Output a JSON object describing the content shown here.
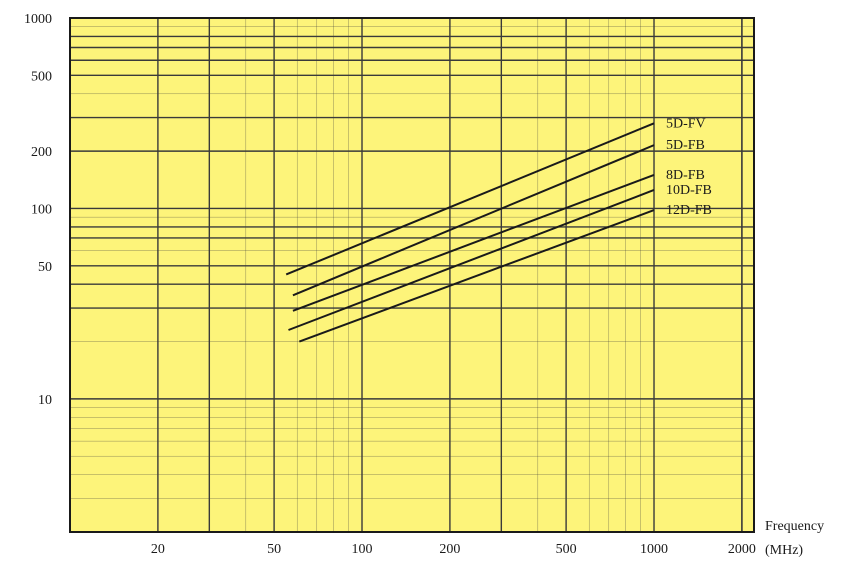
{
  "chart_data": {
    "type": "line",
    "xscale": "log",
    "yscale": "log",
    "xlim": [
      10,
      2200
    ],
    "ylim": [
      2,
      1000
    ],
    "x_tick_labels": [
      20,
      50,
      100,
      200,
      500,
      1000,
      2000
    ],
    "y_tick_labels": [
      10,
      50,
      100,
      200,
      500,
      1000
    ],
    "xlabel": "Frequency",
    "xlabel_unit": "(MHz)",
    "ylabel": "",
    "grid": true,
    "legend": "labels at line ends (right)",
    "colors": {
      "plot_background": "#fdf47a",
      "grid_line": "#3a3a3a",
      "series_line": "#1a1a1a",
      "frame": "#1a1a1a"
    },
    "series": [
      {
        "name": "5D-FV",
        "x": [
          55,
          1000
        ],
        "y": [
          45,
          280
        ]
      },
      {
        "name": "5D-FB",
        "x": [
          58,
          1000
        ],
        "y": [
          35,
          215
        ]
      },
      {
        "name": "8D-FB",
        "x": [
          58,
          1000
        ],
        "y": [
          29,
          150
        ]
      },
      {
        "name": "10D-FB",
        "x": [
          56,
          1000
        ],
        "y": [
          23,
          125
        ]
      },
      {
        "name": "12D-FB",
        "x": [
          61,
          1000
        ],
        "y": [
          20,
          98
        ]
      }
    ]
  }
}
